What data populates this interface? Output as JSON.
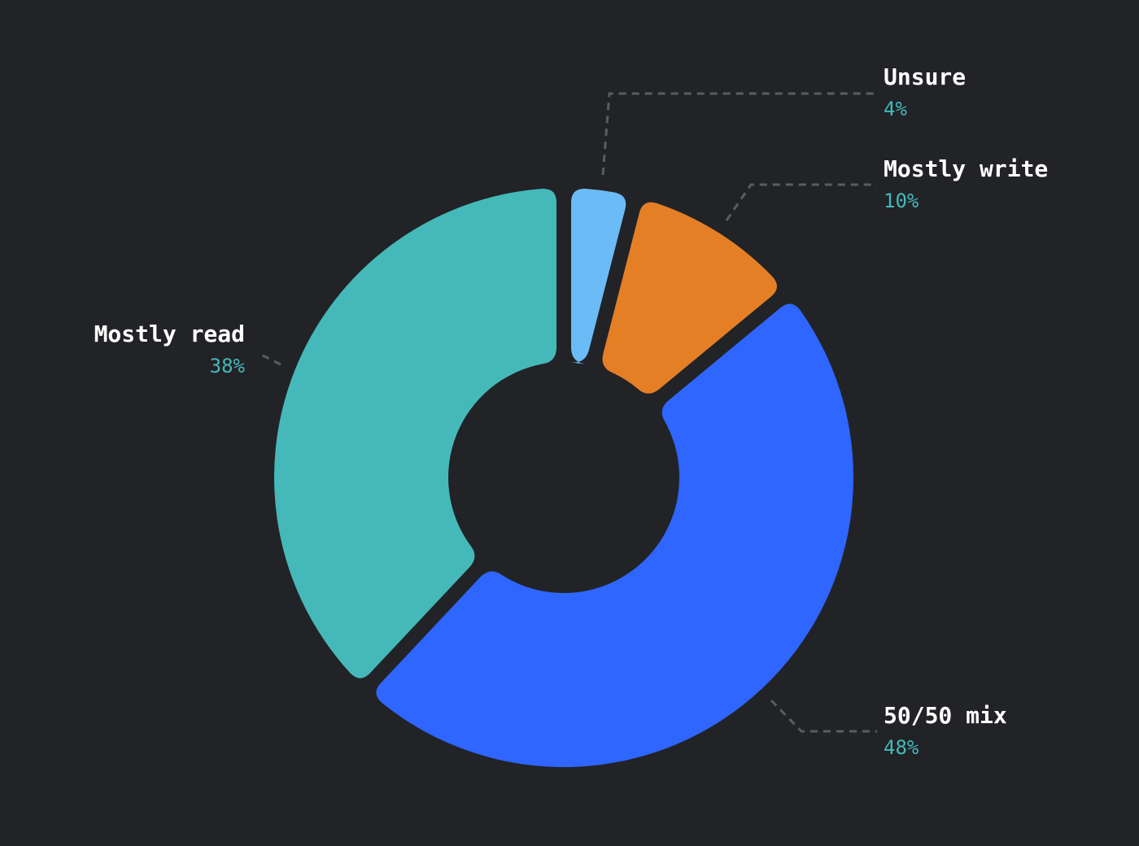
{
  "chart_data": {
    "type": "pie",
    "variant": "donut",
    "slices": [
      {
        "label": "Unsure",
        "value": 4,
        "display": "4%",
        "color": "#6bbcf6"
      },
      {
        "label": "Mostly write",
        "value": 10,
        "display": "10%",
        "color": "#e57f26"
      },
      {
        "label": "50/50 mix",
        "value": 48,
        "display": "48%",
        "color": "#2e66ff"
      },
      {
        "label": "Mostly read",
        "value": 38,
        "display": "38%",
        "color": "#45b9b9"
      }
    ],
    "start_angle_deg": 0,
    "direction": "clockwise",
    "legend": "none",
    "value_label_color": "#45b9b9",
    "background": "#222327"
  }
}
